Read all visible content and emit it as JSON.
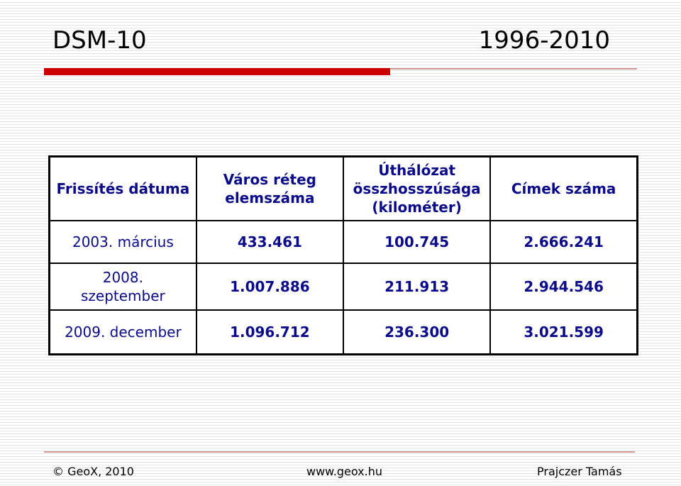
{
  "slide": {
    "title": "DSM-10",
    "years": "1996-2010",
    "accent_color": "#cc0000"
  },
  "table": {
    "headers": {
      "date": "Frissítés dátuma",
      "city": "Város réteg elemszáma",
      "road": "Úthálózat összhosszúsága (kilométer)",
      "address": "Címek száma"
    },
    "rows": [
      {
        "date": "2003. március",
        "city": "433.461",
        "road": "100.745",
        "address": "2.666.241"
      },
      {
        "date": "2008. szeptember",
        "city": "1.007.886",
        "road": "211.913",
        "address": "2.944.546"
      },
      {
        "date": "2009. december",
        "city": "1.096.712",
        "road": "236.300",
        "address": "3.021.599"
      }
    ]
  },
  "footer": {
    "left": "© GeoX, 2010",
    "center": "www.geox.hu",
    "right": "Prajczer Tamás"
  }
}
